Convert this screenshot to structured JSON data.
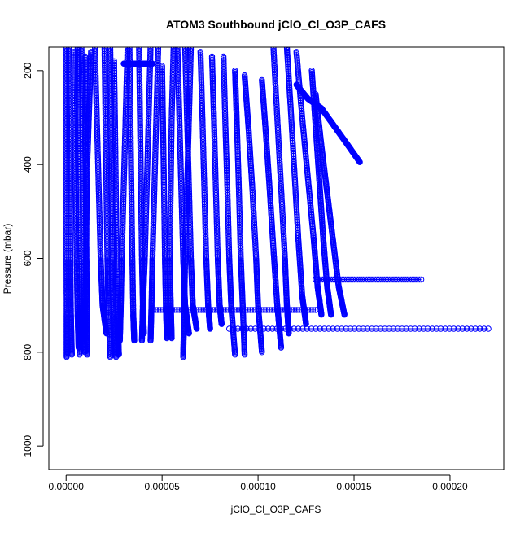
{
  "chart_data": {
    "type": "scatter",
    "title": "ATOM3 Southbound jClO_Cl_O3P_CAFS",
    "xlabel": "jClO_Cl_O3P_CAFS",
    "ylabel": "Pressure (mbar)",
    "xlim": [
      -9e-06,
      0.000228
    ],
    "ylim": [
      1050,
      150
    ],
    "y_reversed": true,
    "x_ticks": [
      0,
      5e-05,
      0.0001,
      0.00015,
      0.0002
    ],
    "x_tick_labels": [
      "0.00000",
      "0.00005",
      "0.00010",
      "0.00015",
      "0.00020"
    ],
    "y_ticks": [
      200,
      400,
      600,
      800,
      1000
    ],
    "y_tick_labels": [
      "200",
      "400",
      "600",
      "800",
      "1000"
    ],
    "grid": false,
    "legend": "none",
    "marker": "open-circle",
    "connect_points": true,
    "series_color": "#0000ff",
    "profiles": [
      {
        "x": [
          2e-07,
          2e-07,
          2e-07,
          2e-07,
          3e-07,
          3e-07
        ],
        "y": [
          150,
          300,
          450,
          600,
          720,
          810
        ]
      },
      {
        "x": [
          1.5e-06,
          1.8e-06,
          2e-06,
          2.2e-06,
          2.5e-06,
          3e-06
        ],
        "y": [
          150,
          300,
          450,
          600,
          720,
          805
        ]
      },
      {
        "x": [
          4e-06,
          4.5e-06,
          5e-06,
          5.5e-06,
          6e-06,
          6.5e-06
        ],
        "y": [
          160,
          300,
          450,
          600,
          720,
          790
        ]
      },
      {
        "x": [
          6e-06,
          6.2e-06,
          6.4e-06,
          6.6e-06,
          6.8e-06,
          7e-06
        ],
        "y": [
          150,
          280,
          420,
          560,
          700,
          805
        ]
      },
      {
        "x": [
          8e-06,
          8.5e-06,
          8.8e-06,
          9.2e-06,
          9.5e-06,
          9.8e-06
        ],
        "y": [
          150,
          300,
          450,
          600,
          720,
          800
        ]
      },
      {
        "x": [
          1e-05,
          1.02e-05,
          1.04e-05,
          1.06e-05,
          1.08e-05,
          1.1e-05
        ],
        "y": [
          170,
          300,
          450,
          600,
          720,
          805
        ]
      },
      {
        "x": [
          1.3e-05,
          1.2e-05,
          1.1e-05,
          1.05e-05,
          1e-05,
          9.8e-06
        ],
        "y": [
          160,
          280,
          400,
          550,
          700,
          770
        ]
      },
      {
        "x": [
          1.5e-05,
          1.6e-05,
          1.7e-05,
          1.8e-05,
          1.9e-05,
          2.1e-05
        ],
        "y": [
          150,
          300,
          450,
          600,
          700,
          760
        ]
      },
      {
        "x": [
          2e-05,
          2.05e-05,
          2.1e-05,
          2.15e-05,
          2.2e-05,
          2.3e-05
        ],
        "y": [
          150,
          300,
          450,
          600,
          700,
          810
        ]
      },
      {
        "x": [
          2.3e-05,
          2.35e-05,
          2.4e-05,
          2.45e-05,
          2.5e-05,
          2.6e-05
        ],
        "y": [
          150,
          300,
          450,
          600,
          720,
          810
        ]
      },
      {
        "x": [
          2.5e-05,
          2.55e-05,
          2.6e-05,
          2.65e-05,
          2.7e-05,
          2.75e-05
        ],
        "y": [
          180,
          320,
          480,
          620,
          750,
          805
        ]
      },
      {
        "x": [
          3.2e-05,
          3.1e-05,
          3e-05,
          2.9e-05,
          2.85e-05,
          2.8e-05
        ],
        "y": [
          150,
          300,
          450,
          600,
          700,
          775
        ]
      },
      {
        "x": [
          3.3e-05,
          3.35e-05,
          3.4e-05,
          3.45e-05,
          3.5e-05,
          3.55e-05
        ],
        "y": [
          150,
          300,
          450,
          600,
          720,
          775
        ]
      },
      {
        "x": [
          3.8e-05,
          3.85e-05,
          3.9e-05,
          3.95e-05,
          4e-05,
          4.05e-05
        ],
        "y": [
          150,
          300,
          450,
          600,
          700,
          760
        ]
      },
      {
        "x": [
          4.4e-05,
          4.3e-05,
          4.2e-05,
          4.1e-05,
          4e-05,
          3.95e-05
        ],
        "y": [
          150,
          300,
          450,
          600,
          700,
          775
        ]
      },
      {
        "x": [
          4.8e-05,
          4.7e-05,
          4.6e-05,
          4.5e-05,
          4.45e-05,
          4.4e-05
        ],
        "y": [
          150,
          300,
          450,
          600,
          700,
          775
        ]
      },
      {
        "x": [
          5e-05,
          5.05e-05,
          5.1e-05,
          5.15e-05,
          5.2e-05,
          5.25e-05
        ],
        "y": [
          190,
          320,
          450,
          600,
          700,
          770
        ]
      },
      {
        "x": [
          5.6e-05,
          5.5e-05,
          5.45e-05,
          5.4e-05,
          5.45e-05,
          5.5e-05
        ],
        "y": [
          150,
          300,
          450,
          600,
          700,
          770
        ]
      },
      {
        "x": [
          5.8e-05,
          5.9e-05,
          6e-05,
          6.1e-05,
          6.2e-05,
          6.4e-05
        ],
        "y": [
          150,
          300,
          450,
          600,
          700,
          760
        ]
      },
      {
        "x": [
          6.2e-05,
          6.3e-05,
          6.4e-05,
          6.5e-05,
          6.6e-05,
          6.8e-05
        ],
        "y": [
          150,
          300,
          450,
          600,
          700,
          750
        ]
      },
      {
        "x": [
          6.5e-05,
          6.4e-05,
          6.3e-05,
          6.2e-05,
          6.15e-05,
          6.1e-05
        ],
        "y": [
          150,
          300,
          450,
          600,
          720,
          810
        ]
      },
      {
        "x": [
          7e-05,
          7.1e-05,
          7.2e-05,
          7.3e-05,
          7.4e-05,
          7.5e-05
        ],
        "y": [
          160,
          300,
          450,
          600,
          700,
          750
        ]
      },
      {
        "x": [
          7.6e-05,
          7.7e-05,
          7.8e-05,
          7.9e-05,
          8e-05,
          8.1e-05
        ],
        "y": [
          170,
          300,
          450,
          600,
          700,
          740
        ]
      },
      {
        "x": [
          8.2e-05,
          8.3e-05,
          8.4e-05,
          8.5e-05,
          8.6e-05,
          8.8e-05
        ],
        "y": [
          170,
          320,
          450,
          600,
          700,
          805
        ]
      },
      {
        "x": [
          8.8e-05,
          8.9e-05,
          9e-05,
          9.1e-05,
          9.2e-05,
          9.3e-05
        ],
        "y": [
          200,
          320,
          450,
          600,
          700,
          805
        ]
      },
      {
        "x": [
          9.3e-05,
          9.5e-05,
          9.7e-05,
          9.9e-05,
          0.0001,
          0.000102
        ],
        "y": [
          210,
          320,
          450,
          600,
          700,
          800
        ]
      },
      {
        "x": [
          0.000102,
          0.000104,
          0.000106,
          0.000108,
          0.00011,
          0.000112
        ],
        "y": [
          220,
          330,
          450,
          580,
          700,
          790
        ]
      },
      {
        "x": [
          0.000108,
          0.00011,
          0.000112,
          0.000114,
          0.000115,
          0.000116
        ],
        "y": [
          150,
          300,
          450,
          600,
          700,
          760
        ]
      },
      {
        "x": [
          0.000115,
          0.000117,
          0.000119,
          0.000121,
          0.000123,
          0.000125
        ],
        "y": [
          150,
          280,
          420,
          560,
          680,
          740
        ]
      },
      {
        "x": [
          0.00012,
          0.000123,
          0.000126,
          0.000129,
          0.000131,
          0.000133
        ],
        "y": [
          160,
          300,
          430,
          560,
          660,
          720
        ]
      },
      {
        "x": [
          0.000128,
          0.00013,
          0.000132,
          0.000134,
          0.000136,
          0.000138
        ],
        "y": [
          200,
          320,
          440,
          560,
          660,
          720
        ]
      },
      {
        "x": [
          0.00013,
          0.000133,
          0.000136,
          0.000139,
          0.000142,
          0.000145
        ],
        "y": [
          250,
          360,
          460,
          560,
          660,
          720
        ]
      },
      {
        "x": [
          0.00012,
          0.000126,
          0.000133,
          0.00014,
          0.000147,
          0.000153
        ],
        "y": [
          230,
          260,
          280,
          320,
          360,
          395
        ]
      }
    ],
    "horizontal_bands": [
      {
        "y": 750,
        "x": [
          8.5e-05,
          0.00022
        ]
      },
      {
        "y": 710,
        "x": [
          4.5e-05,
          0.00013
        ]
      },
      {
        "y": 645,
        "x": [
          0.00013,
          0.000185
        ]
      },
      {
        "y": 185,
        "x": [
          3e-05,
          4.5e-05
        ]
      }
    ]
  }
}
